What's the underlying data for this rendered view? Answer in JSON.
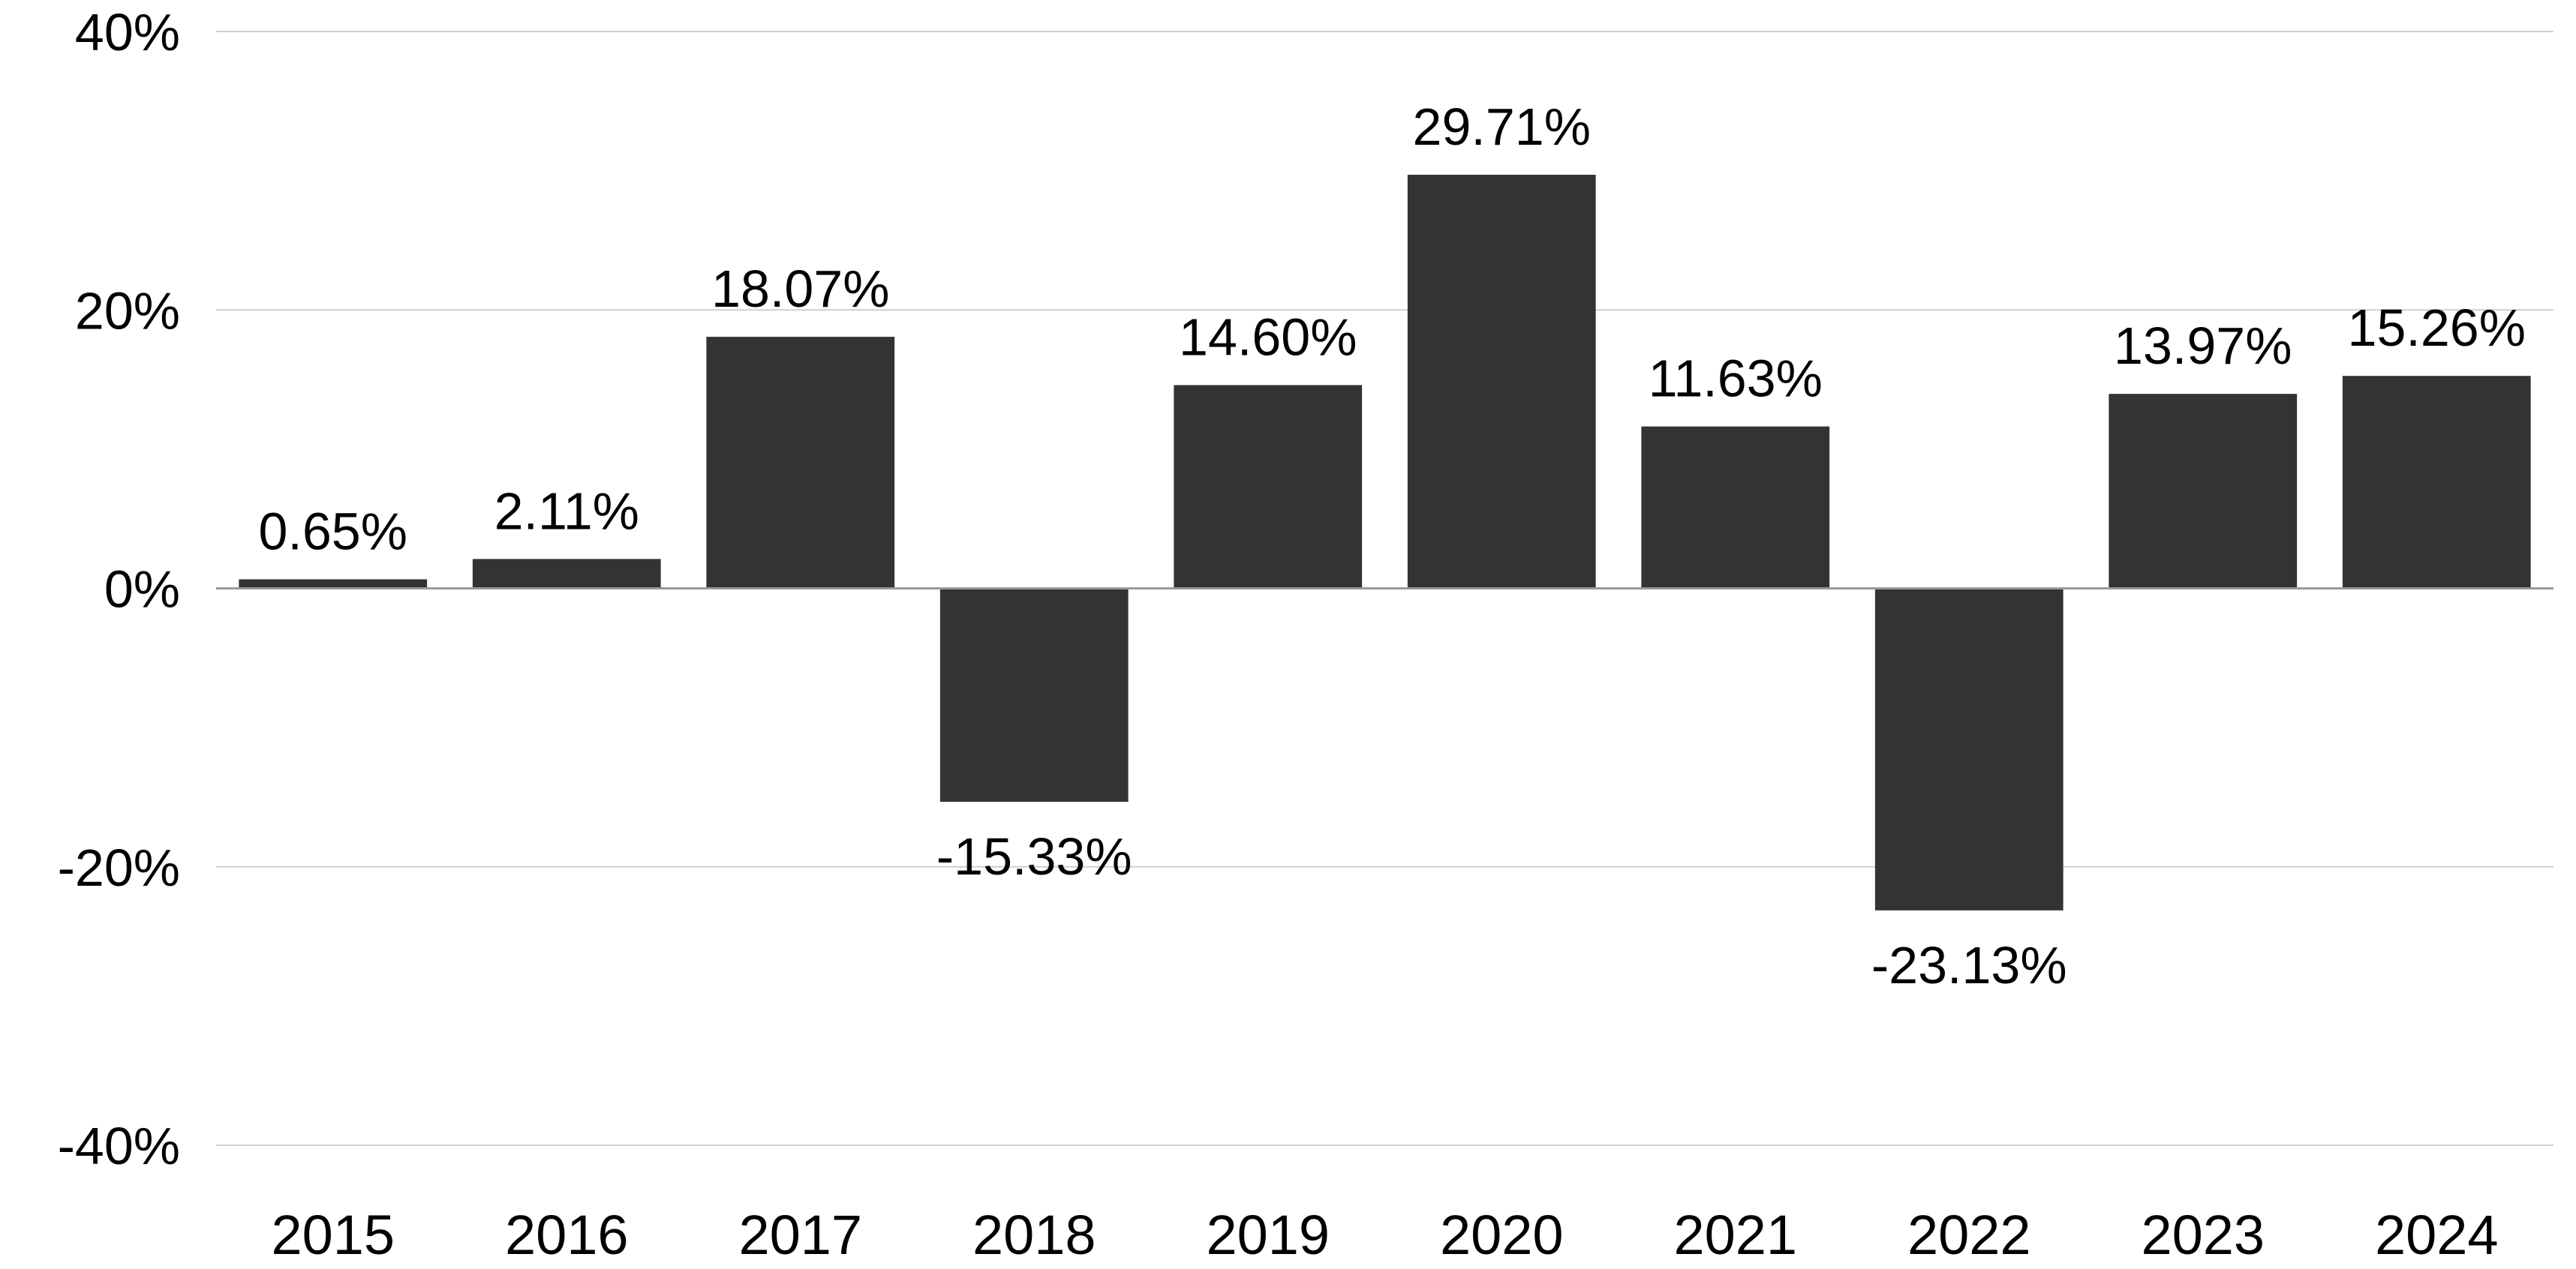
{
  "chart_data": {
    "type": "bar",
    "title": "",
    "xlabel": "",
    "ylabel": "",
    "categories": [
      "2015",
      "2016",
      "2017",
      "2018",
      "2019",
      "2020",
      "2021",
      "2022",
      "2023",
      "2024"
    ],
    "values": [
      0.65,
      2.11,
      18.07,
      -15.33,
      14.6,
      29.71,
      11.63,
      -23.13,
      13.97,
      15.26
    ],
    "data_labels": [
      "0.65%",
      "2.11%",
      "18.07%",
      "-15.33%",
      "14.60%",
      "29.71%",
      "11.63%",
      "-23.13%",
      "13.97%",
      "15.26%"
    ],
    "ylim": [
      -40,
      40
    ],
    "yticks": [
      40,
      20,
      0,
      -20,
      -40
    ],
    "ytick_labels": [
      "40%",
      "20%",
      "0%",
      "-20%",
      "-40%"
    ],
    "bar_color": "#333333",
    "grid": true,
    "legend": "none"
  }
}
